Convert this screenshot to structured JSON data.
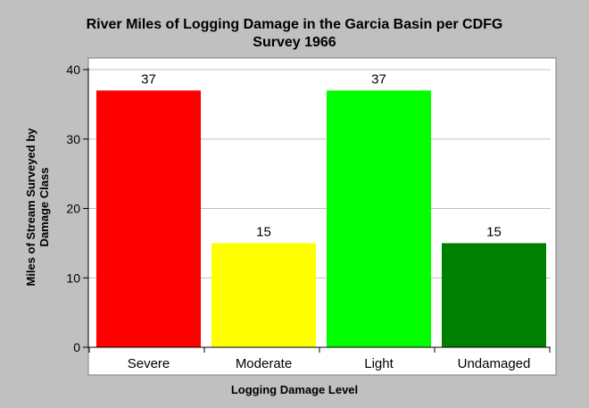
{
  "chart_data": {
    "type": "bar",
    "title_lines": [
      "River Miles of Logging Damage in the Garcia Basin per CDFG",
      "Survey 1966"
    ],
    "xlabel": "Logging Damage Level",
    "ylabel_lines": [
      "Miles of Stream Surveyed by",
      "Damage Class"
    ],
    "categories": [
      "Severe",
      "Moderate",
      "Light",
      "Undamaged"
    ],
    "values": [
      37,
      15,
      37,
      15
    ],
    "data_labels": [
      "37",
      "15",
      "37",
      "15"
    ],
    "colors": [
      "#ff0000",
      "#ffff00",
      "#00ff00",
      "#008000"
    ],
    "ylim": [
      0,
      40
    ],
    "yticks": [
      0,
      10,
      20,
      30,
      40
    ],
    "grid": true,
    "legend": "none"
  }
}
